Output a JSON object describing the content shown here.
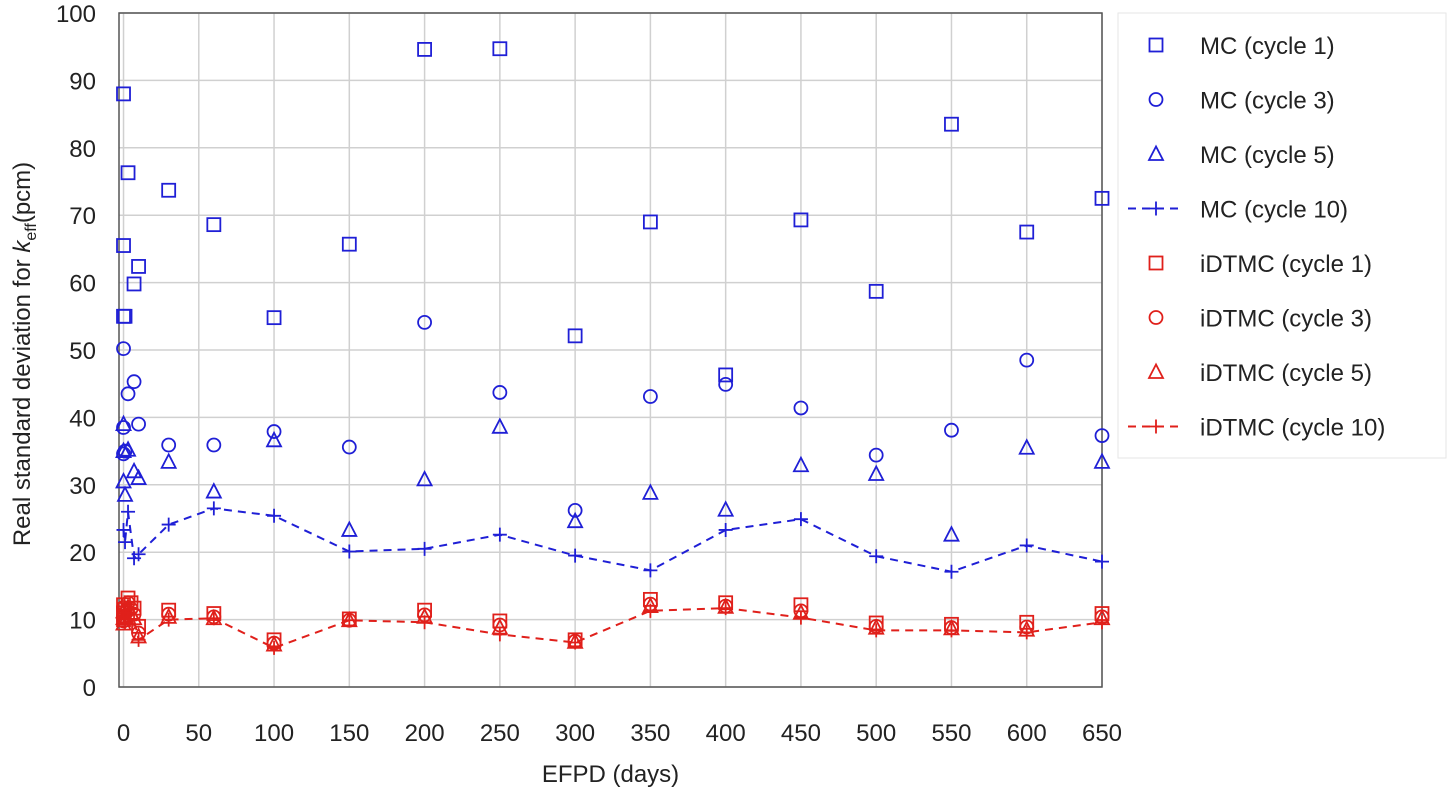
{
  "chart_data": {
    "type": "scatter",
    "xlabel": "EFPD (days)",
    "ylabel_parts": [
      "Real standard deviation for ",
      "k",
      "eff",
      "(pcm)"
    ],
    "xlim": [
      -3,
      650
    ],
    "ylim": [
      0,
      100
    ],
    "xticks": [
      0,
      50,
      100,
      150,
      200,
      250,
      300,
      350,
      400,
      450,
      500,
      550,
      600,
      650
    ],
    "yticks": [
      0,
      10,
      20,
      30,
      40,
      50,
      60,
      70,
      80,
      90,
      100
    ],
    "grid": true,
    "legend_position": "right",
    "series": [
      {
        "name": "MC (cycle 1)",
        "color": "#1f1fd6",
        "marker": "square",
        "line": false,
        "points": [
          [
            0,
            88
          ],
          [
            0,
            65.5
          ],
          [
            0,
            55
          ],
          [
            1,
            55
          ],
          [
            3,
            76.3
          ],
          [
            7,
            59.8
          ],
          [
            10,
            62.4
          ],
          [
            30,
            73.7
          ],
          [
            60,
            68.6
          ],
          [
            100,
            54.8
          ],
          [
            150,
            65.7
          ],
          [
            200,
            94.6
          ],
          [
            250,
            94.7
          ],
          [
            300,
            52.1
          ],
          [
            350,
            69
          ],
          [
            400,
            46.3
          ],
          [
            450,
            69.3
          ],
          [
            500,
            58.7
          ],
          [
            550,
            83.5
          ],
          [
            600,
            67.5
          ],
          [
            650,
            72.5
          ]
        ]
      },
      {
        "name": "MC (cycle 3)",
        "color": "#1f1fd6",
        "marker": "circle",
        "line": false,
        "points": [
          [
            0,
            50.2
          ],
          [
            0,
            38.5
          ],
          [
            0,
            34.6
          ],
          [
            1,
            35
          ],
          [
            3,
            43.5
          ],
          [
            7,
            45.3
          ],
          [
            10,
            39
          ],
          [
            30,
            35.9
          ],
          [
            60,
            35.9
          ],
          [
            100,
            37.9
          ],
          [
            150,
            35.6
          ],
          [
            200,
            54.1
          ],
          [
            250,
            43.7
          ],
          [
            300,
            26.2
          ],
          [
            350,
            43.1
          ],
          [
            400,
            44.9
          ],
          [
            450,
            41.4
          ],
          [
            500,
            34.4
          ],
          [
            550,
            38.1
          ],
          [
            600,
            48.5
          ],
          [
            650,
            37.3
          ]
        ]
      },
      {
        "name": "MC (cycle 5)",
        "color": "#1f1fd6",
        "marker": "triangle",
        "line": false,
        "points": [
          [
            0,
            39
          ],
          [
            0,
            35
          ],
          [
            0,
            30.5
          ],
          [
            1,
            28.5
          ],
          [
            3,
            35.2
          ],
          [
            7,
            32
          ],
          [
            10,
            31
          ],
          [
            30,
            33.4
          ],
          [
            60,
            29
          ],
          [
            100,
            36.6
          ],
          [
            150,
            23.3
          ],
          [
            200,
            30.8
          ],
          [
            250,
            38.6
          ],
          [
            300,
            24.6
          ],
          [
            350,
            28.8
          ],
          [
            400,
            26.3
          ],
          [
            450,
            32.9
          ],
          [
            500,
            31.6
          ],
          [
            550,
            22.6
          ],
          [
            600,
            35.5
          ],
          [
            650,
            33.4
          ]
        ]
      },
      {
        "name": "MC (cycle 10)",
        "color": "#1f1fd6",
        "marker": "plus",
        "line": true,
        "points": [
          [
            0,
            23.3
          ],
          [
            1,
            21.5
          ],
          [
            3,
            26
          ],
          [
            7,
            19.1
          ],
          [
            10,
            19.7
          ],
          [
            30,
            24.1
          ],
          [
            60,
            26.5
          ],
          [
            100,
            25.4
          ],
          [
            150,
            20.1
          ],
          [
            200,
            20.5
          ],
          [
            250,
            22.6
          ],
          [
            300,
            19.5
          ],
          [
            350,
            17.3
          ],
          [
            400,
            23.3
          ],
          [
            450,
            24.9
          ],
          [
            500,
            19.4
          ],
          [
            550,
            17.1
          ],
          [
            600,
            21
          ],
          [
            650,
            18.6
          ]
        ]
      },
      {
        "name": "iDTMC (cycle 1)",
        "color": "#e0201b",
        "marker": "square",
        "line": false,
        "points": [
          [
            0,
            12.2
          ],
          [
            0,
            11
          ],
          [
            0,
            10
          ],
          [
            1,
            11.5
          ],
          [
            3,
            13.2
          ],
          [
            5,
            12.5
          ],
          [
            7,
            11.7
          ],
          [
            10,
            9
          ],
          [
            30,
            11.4
          ],
          [
            60,
            10.9
          ],
          [
            100,
            7
          ],
          [
            150,
            10.1
          ],
          [
            200,
            11.4
          ],
          [
            250,
            9.8
          ],
          [
            300,
            7
          ],
          [
            350,
            13
          ],
          [
            400,
            12.5
          ],
          [
            450,
            12.2
          ],
          [
            500,
            9.5
          ],
          [
            550,
            9.3
          ],
          [
            600,
            9.6
          ],
          [
            650,
            10.9
          ]
        ]
      },
      {
        "name": "iDTMC (cycle 3)",
        "color": "#e0201b",
        "marker": "circle",
        "line": false,
        "points": [
          [
            0,
            11.8
          ],
          [
            0,
            10.5
          ],
          [
            0,
            9.8
          ],
          [
            1,
            11
          ],
          [
            3,
            12.5
          ],
          [
            5,
            11.6
          ],
          [
            7,
            10.8
          ],
          [
            10,
            8
          ],
          [
            30,
            10.8
          ],
          [
            60,
            10.4
          ],
          [
            100,
            6.5
          ],
          [
            150,
            9.9
          ],
          [
            200,
            10.7
          ],
          [
            250,
            9.2
          ],
          [
            300,
            6.8
          ],
          [
            350,
            12.3
          ],
          [
            400,
            12
          ],
          [
            450,
            11.3
          ],
          [
            500,
            9
          ],
          [
            550,
            8.8
          ],
          [
            600,
            8.9
          ],
          [
            650,
            10.4
          ]
        ]
      },
      {
        "name": "iDTMC (cycle 5)",
        "color": "#e0201b",
        "marker": "triangle",
        "line": false,
        "points": [
          [
            0,
            11.2
          ],
          [
            0,
            10.2
          ],
          [
            0,
            9.4
          ],
          [
            1,
            10.4
          ],
          [
            3,
            11.8
          ],
          [
            5,
            11
          ],
          [
            7,
            10.2
          ],
          [
            10,
            7.5
          ],
          [
            30,
            10.4
          ],
          [
            60,
            10.2
          ],
          [
            100,
            6.3
          ],
          [
            150,
            9.9
          ],
          [
            200,
            10.4
          ],
          [
            250,
            8.8
          ],
          [
            300,
            6.7
          ],
          [
            350,
            12
          ],
          [
            400,
            11.9
          ],
          [
            450,
            11
          ],
          [
            500,
            8.8
          ],
          [
            550,
            8.7
          ],
          [
            600,
            8.5
          ],
          [
            650,
            10.2
          ]
        ]
      },
      {
        "name": "iDTMC (cycle 10)",
        "color": "#e0201b",
        "marker": "plus",
        "line": true,
        "points": [
          [
            0,
            10.5
          ],
          [
            1,
            9.6
          ],
          [
            3,
            11
          ],
          [
            7,
            10
          ],
          [
            10,
            7
          ],
          [
            30,
            10
          ],
          [
            60,
            10.2
          ],
          [
            100,
            5.8
          ],
          [
            150,
            9.9
          ],
          [
            200,
            9.6
          ],
          [
            250,
            7.8
          ],
          [
            300,
            6.6
          ],
          [
            350,
            11.3
          ],
          [
            400,
            11.7
          ],
          [
            450,
            10.3
          ],
          [
            500,
            8.4
          ],
          [
            550,
            8.4
          ],
          [
            600,
            8.1
          ],
          [
            650,
            9.6
          ]
        ]
      }
    ]
  }
}
